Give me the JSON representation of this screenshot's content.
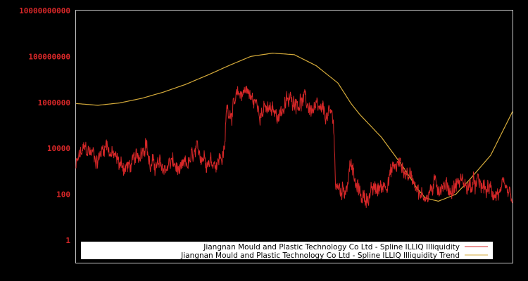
{
  "chart_data": {
    "type": "line",
    "title": "",
    "xlabel": "",
    "ylabel": "",
    "yscale": "log",
    "ylim": [
      0.1,
      10000000000
    ],
    "yticks": [
      {
        "value": 10000000000,
        "label": "10000000000"
      },
      {
        "value": 100000000,
        "label": "100000000"
      },
      {
        "value": 1000000,
        "label": "1000000"
      },
      {
        "value": 10000,
        "label": "10000"
      },
      {
        "value": 100,
        "label": "100"
      },
      {
        "value": 1,
        "label": "1"
      }
    ],
    "xticks": [],
    "grid": false,
    "legend_position": "bottom",
    "x_range": [
      0,
      100
    ],
    "series": [
      {
        "name": "Jiangnan Mould and Plastic Technology Co Ltd - Spline ILLIQ Illiquidity",
        "color": "#d62728",
        "type": "noisy",
        "anchors": [
          [
            0,
            1500
          ],
          [
            1,
            5000
          ],
          [
            2,
            8000
          ],
          [
            4,
            6000
          ],
          [
            5,
            3000
          ],
          [
            6,
            9000
          ],
          [
            7,
            20000
          ],
          [
            8,
            6000
          ],
          [
            10,
            2000
          ],
          [
            12,
            1500
          ],
          [
            14,
            3000
          ],
          [
            16,
            30000
          ],
          [
            17,
            1500
          ],
          [
            18,
            2000
          ],
          [
            20,
            1200
          ],
          [
            22,
            2500
          ],
          [
            24,
            700
          ],
          [
            25,
            1500
          ],
          [
            27,
            4000
          ],
          [
            29,
            6000
          ],
          [
            30,
            4000
          ],
          [
            32,
            3000
          ],
          [
            33,
            4000
          ],
          [
            34,
            6000
          ],
          [
            34.5,
            600000
          ],
          [
            35.5,
            500000
          ],
          [
            37,
            1200000
          ],
          [
            39,
            5000000
          ],
          [
            40,
            1500000
          ],
          [
            42,
            600000
          ],
          [
            44,
            400000
          ],
          [
            46,
            300000
          ],
          [
            48,
            800000
          ],
          [
            50,
            1500000
          ],
          [
            52,
            1200000
          ],
          [
            54,
            500000
          ],
          [
            56,
            300000
          ],
          [
            59,
            200000
          ],
          [
            59.5,
            200
          ],
          [
            61,
            150
          ],
          [
            62,
            300
          ],
          [
            63,
            3000
          ],
          [
            64,
            200
          ],
          [
            66,
            70
          ],
          [
            68,
            120
          ],
          [
            70,
            200
          ],
          [
            71,
            400
          ],
          [
            73,
            1500
          ],
          [
            74,
            2000
          ],
          [
            76,
            800
          ],
          [
            78,
            400
          ],
          [
            79,
            60
          ],
          [
            80,
            100
          ],
          [
            82,
            200
          ],
          [
            84,
            300
          ],
          [
            86,
            150
          ],
          [
            88,
            400
          ],
          [
            90,
            200
          ],
          [
            92,
            250
          ],
          [
            94,
            150
          ],
          [
            96,
            120
          ],
          [
            98,
            100
          ],
          [
            100,
            50
          ]
        ]
      },
      {
        "name": "Jiangnan Mould and Plastic Technology Co Ltd - Spline ILLIQ Illiquidity Trend",
        "color": "#d4aa3a",
        "type": "smooth",
        "anchors": [
          [
            0,
            900000
          ],
          [
            5,
            750000
          ],
          [
            10,
            950000
          ],
          [
            15,
            1500000
          ],
          [
            20,
            2800000
          ],
          [
            25,
            6000000
          ],
          [
            30,
            15000000
          ],
          [
            35,
            40000000
          ],
          [
            40,
            100000000
          ],
          [
            45,
            140000000
          ],
          [
            50,
            120000000
          ],
          [
            55,
            40000000
          ],
          [
            60,
            7000000
          ],
          [
            63,
            900000
          ],
          [
            65,
            300000
          ],
          [
            70,
            30000
          ],
          [
            75,
            1500
          ],
          [
            78,
            200
          ],
          [
            80,
            70
          ],
          [
            83,
            50
          ],
          [
            87,
            100
          ],
          [
            90,
            400
          ],
          [
            95,
            5000
          ],
          [
            100,
            400000
          ]
        ]
      }
    ]
  },
  "legend": {
    "items": [
      {
        "label": "Jiangnan Mould and Plastic Technology Co Ltd - Spline ILLIQ Illiquidity",
        "color": "#d62728"
      },
      {
        "label": "Jiangnan Mould and Plastic Technology Co Ltd - Spline ILLIQ Illiquidity Trend",
        "color": "#d4aa3a"
      }
    ]
  }
}
